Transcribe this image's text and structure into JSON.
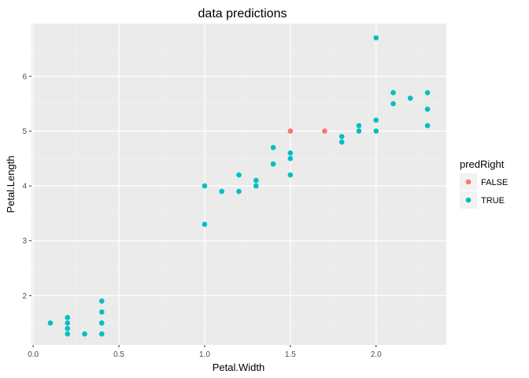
{
  "chart_data": {
    "type": "scatter",
    "title": "data predictions",
    "xlabel": "Petal.Width",
    "ylabel": "Petal.Length",
    "xlim": [
      -0.01,
      2.41
    ],
    "ylim": [
      1.1,
      6.96
    ],
    "x_ticks": [
      0.0,
      0.5,
      1.0,
      1.5,
      2.0
    ],
    "x_tick_labels": [
      "0.0",
      "0.5",
      "1.0",
      "1.5",
      "2.0"
    ],
    "y_ticks": [
      2,
      3,
      4,
      5,
      6
    ],
    "y_tick_labels": [
      "2",
      "3",
      "4",
      "5",
      "6"
    ],
    "grid": true,
    "legend": {
      "title": "predRight",
      "position": "right",
      "entries": [
        {
          "label": "FALSE",
          "color": "#F8766D"
        },
        {
          "label": "TRUE",
          "color": "#00BFC4"
        }
      ]
    },
    "series": [
      {
        "name": "FALSE",
        "color": "#F8766D",
        "points": [
          [
            1.5,
            5.0
          ],
          [
            1.7,
            5.0
          ]
        ]
      },
      {
        "name": "TRUE",
        "color": "#00BFC4",
        "points": [
          [
            0.1,
            1.5
          ],
          [
            0.2,
            1.6
          ],
          [
            0.2,
            1.5
          ],
          [
            0.2,
            1.4
          ],
          [
            0.2,
            1.3
          ],
          [
            0.3,
            1.3
          ],
          [
            0.4,
            1.9
          ],
          [
            0.4,
            1.7
          ],
          [
            0.4,
            1.5
          ],
          [
            0.4,
            1.3
          ],
          [
            1.0,
            4.0
          ],
          [
            1.0,
            3.3
          ],
          [
            1.1,
            3.9
          ],
          [
            1.2,
            4.2
          ],
          [
            1.2,
            3.9
          ],
          [
            1.3,
            4.1
          ],
          [
            1.3,
            4.0
          ],
          [
            1.4,
            4.7
          ],
          [
            1.4,
            4.4
          ],
          [
            1.5,
            4.6
          ],
          [
            1.5,
            4.5
          ],
          [
            1.5,
            4.2
          ],
          [
            1.8,
            4.9
          ],
          [
            1.8,
            4.8
          ],
          [
            1.9,
            5.1
          ],
          [
            1.9,
            5.0
          ],
          [
            2.0,
            6.7
          ],
          [
            2.0,
            5.2
          ],
          [
            2.0,
            5.0
          ],
          [
            2.1,
            5.7
          ],
          [
            2.1,
            5.5
          ],
          [
            2.2,
            5.6
          ],
          [
            2.3,
            5.7
          ],
          [
            2.3,
            5.4
          ],
          [
            2.3,
            5.1
          ]
        ]
      }
    ]
  }
}
